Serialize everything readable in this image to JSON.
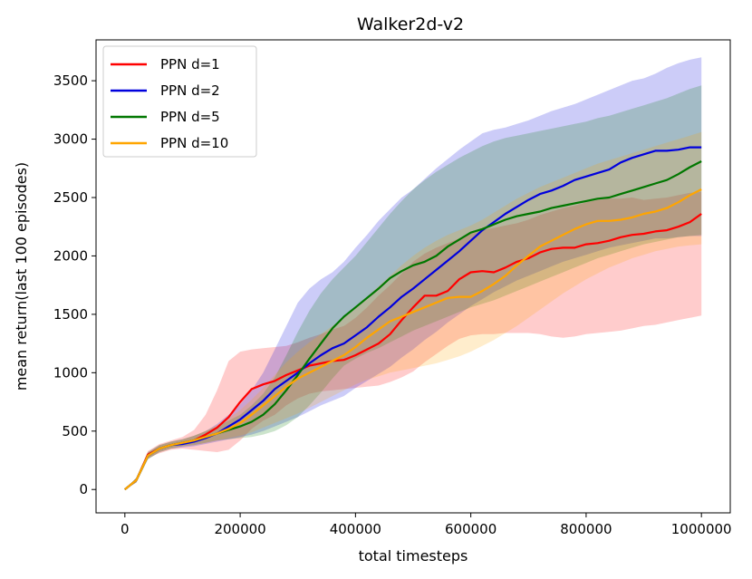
{
  "chart_data": {
    "type": "line",
    "title": "Walker2d-v2",
    "xlabel": "total timesteps",
    "ylabel": "mean return(last 100 episodes)",
    "xlim": [
      -50000,
      1050000
    ],
    "ylim": [
      -200,
      3850
    ],
    "xticks": [
      0,
      200000,
      400000,
      600000,
      800000,
      1000000
    ],
    "xtick_labels": [
      "0",
      "200000",
      "400000",
      "600000",
      "800000",
      "1000000"
    ],
    "yticks": [
      0,
      500,
      1000,
      1500,
      2000,
      2500,
      3000,
      3500
    ],
    "ytick_labels": [
      "0",
      "500",
      "1000",
      "1500",
      "2000",
      "2500",
      "3000",
      "3500"
    ],
    "legend_position": "top-left",
    "x": [
      0,
      20000,
      40000,
      60000,
      80000,
      100000,
      120000,
      140000,
      160000,
      180000,
      200000,
      220000,
      240000,
      260000,
      280000,
      300000,
      320000,
      340000,
      360000,
      380000,
      400000,
      420000,
      440000,
      460000,
      480000,
      500000,
      520000,
      540000,
      560000,
      580000,
      600000,
      620000,
      640000,
      660000,
      680000,
      700000,
      720000,
      740000,
      760000,
      780000,
      800000,
      820000,
      840000,
      860000,
      880000,
      900000,
      920000,
      940000,
      960000,
      980000,
      1000000
    ],
    "series": [
      {
        "name": "PPN d=1",
        "color": "#ff0000",
        "values": [
          0,
          80,
          300,
          350,
          380,
          400,
          420,
          470,
          530,
          620,
          750,
          860,
          900,
          930,
          980,
          1020,
          1060,
          1080,
          1100,
          1110,
          1150,
          1200,
          1250,
          1330,
          1450,
          1560,
          1660,
          1660,
          1700,
          1800,
          1860,
          1870,
          1860,
          1900,
          1950,
          1980,
          2030,
          2060,
          2070,
          2070,
          2100,
          2110,
          2130,
          2160,
          2180,
          2190,
          2210,
          2220,
          2250,
          2290,
          2360
        ],
        "upper": [
          0,
          100,
          330,
          390,
          420,
          450,
          510,
          640,
          850,
          1100,
          1180,
          1200,
          1210,
          1220,
          1230,
          1260,
          1300,
          1330,
          1370,
          1400,
          1470,
          1560,
          1660,
          1750,
          1850,
          1950,
          2020,
          2070,
          2110,
          2150,
          2190,
          2220,
          2240,
          2260,
          2280,
          2310,
          2350,
          2380,
          2410,
          2430,
          2460,
          2480,
          2490,
          2490,
          2500,
          2480,
          2490,
          2500,
          2520,
          2540,
          2550
        ],
        "lower": [
          0,
          60,
          270,
          310,
          340,
          350,
          340,
          330,
          320,
          340,
          420,
          520,
          590,
          640,
          720,
          780,
          820,
          840,
          850,
          860,
          870,
          880,
          890,
          920,
          960,
          1010,
          1090,
          1160,
          1230,
          1290,
          1320,
          1330,
          1330,
          1340,
          1340,
          1340,
          1330,
          1310,
          1300,
          1310,
          1330,
          1340,
          1350,
          1360,
          1380,
          1400,
          1410,
          1430,
          1450,
          1470,
          1490
        ]
      },
      {
        "name": "PPN d=2",
        "color": "#0000dd",
        "values": [
          0,
          80,
          290,
          350,
          380,
          390,
          410,
          440,
          480,
          540,
          600,
          680,
          760,
          860,
          930,
          1000,
          1080,
          1150,
          1210,
          1250,
          1320,
          1390,
          1480,
          1560,
          1650,
          1720,
          1800,
          1880,
          1960,
          2040,
          2130,
          2220,
          2290,
          2360,
          2420,
          2480,
          2530,
          2560,
          2600,
          2650,
          2680,
          2710,
          2740,
          2800,
          2840,
          2870,
          2900,
          2900,
          2910,
          2930,
          2930
        ],
        "upper": [
          0,
          100,
          320,
          380,
          410,
          430,
          460,
          500,
          560,
          640,
          730,
          850,
          1000,
          1200,
          1400,
          1600,
          1720,
          1800,
          1860,
          1950,
          2070,
          2180,
          2300,
          2400,
          2500,
          2570,
          2660,
          2750,
          2830,
          2910,
          2980,
          3050,
          3080,
          3100,
          3130,
          3160,
          3200,
          3240,
          3270,
          3300,
          3340,
          3380,
          3420,
          3460,
          3500,
          3520,
          3560,
          3610,
          3650,
          3680,
          3700
        ],
        "lower": [
          0,
          60,
          260,
          320,
          350,
          360,
          370,
          390,
          410,
          430,
          450,
          470,
          500,
          540,
          580,
          620,
          670,
          720,
          760,
          800,
          870,
          930,
          990,
          1050,
          1130,
          1200,
          1280,
          1350,
          1430,
          1500,
          1570,
          1630,
          1690,
          1740,
          1790,
          1830,
          1870,
          1910,
          1950,
          1980,
          2010,
          2040,
          2070,
          2090,
          2110,
          2130,
          2150,
          2150,
          2160,
          2170,
          2170
        ]
      },
      {
        "name": "PPN d=5",
        "color": "#007700",
        "values": [
          0,
          80,
          290,
          350,
          380,
          400,
          420,
          450,
          480,
          510,
          540,
          580,
          640,
          730,
          850,
          980,
          1120,
          1250,
          1380,
          1480,
          1560,
          1640,
          1720,
          1810,
          1870,
          1920,
          1950,
          2000,
          2080,
          2140,
          2200,
          2230,
          2270,
          2310,
          2340,
          2360,
          2380,
          2410,
          2430,
          2450,
          2470,
          2490,
          2500,
          2530,
          2560,
          2590,
          2620,
          2650,
          2700,
          2760,
          2810
        ],
        "upper": [
          0,
          100,
          320,
          380,
          410,
          430,
          460,
          500,
          540,
          590,
          640,
          720,
          820,
          960,
          1150,
          1350,
          1530,
          1680,
          1800,
          1900,
          2000,
          2120,
          2240,
          2360,
          2470,
          2570,
          2650,
          2720,
          2780,
          2840,
          2890,
          2940,
          2980,
          3010,
          3030,
          3050,
          3070,
          3090,
          3110,
          3130,
          3150,
          3180,
          3200,
          3230,
          3260,
          3290,
          3320,
          3350,
          3390,
          3430,
          3460
        ],
        "lower": [
          0,
          60,
          260,
          320,
          350,
          370,
          380,
          400,
          420,
          430,
          440,
          450,
          470,
          500,
          550,
          620,
          720,
          830,
          950,
          1060,
          1120,
          1170,
          1210,
          1260,
          1310,
          1360,
          1400,
          1440,
          1480,
          1520,
          1560,
          1590,
          1620,
          1660,
          1700,
          1740,
          1780,
          1820,
          1860,
          1900,
          1940,
          1980,
          2010,
          2040,
          2070,
          2100,
          2120,
          2140,
          2160,
          2170,
          2180
        ]
      },
      {
        "name": "PPN d=10",
        "color": "#ffa500",
        "values": [
          0,
          80,
          290,
          350,
          380,
          400,
          420,
          450,
          480,
          520,
          570,
          640,
          720,
          800,
          880,
          950,
          1000,
          1050,
          1100,
          1150,
          1220,
          1300,
          1370,
          1440,
          1480,
          1520,
          1560,
          1600,
          1640,
          1650,
          1650,
          1700,
          1760,
          1830,
          1920,
          2000,
          2080,
          2130,
          2180,
          2230,
          2270,
          2300,
          2300,
          2310,
          2330,
          2360,
          2380,
          2410,
          2460,
          2520,
          2570
        ],
        "upper": [
          0,
          100,
          320,
          380,
          410,
          430,
          460,
          500,
          550,
          610,
          680,
          770,
          870,
          980,
          1090,
          1180,
          1260,
          1330,
          1400,
          1470,
          1560,
          1650,
          1740,
          1830,
          1920,
          2000,
          2070,
          2130,
          2180,
          2220,
          2260,
          2310,
          2370,
          2430,
          2490,
          2540,
          2590,
          2630,
          2670,
          2710,
          2750,
          2790,
          2820,
          2850,
          2880,
          2910,
          2940,
          2970,
          3000,
          3030,
          3060
        ],
        "lower": [
          0,
          60,
          260,
          320,
          350,
          370,
          380,
          400,
          420,
          440,
          460,
          490,
          530,
          570,
          610,
          650,
          700,
          750,
          800,
          850,
          900,
          940,
          970,
          1000,
          1020,
          1040,
          1060,
          1080,
          1110,
          1140,
          1180,
          1230,
          1280,
          1340,
          1400,
          1470,
          1540,
          1610,
          1680,
          1740,
          1800,
          1850,
          1900,
          1940,
          1980,
          2010,
          2040,
          2060,
          2080,
          2090,
          2100
        ]
      }
    ]
  }
}
